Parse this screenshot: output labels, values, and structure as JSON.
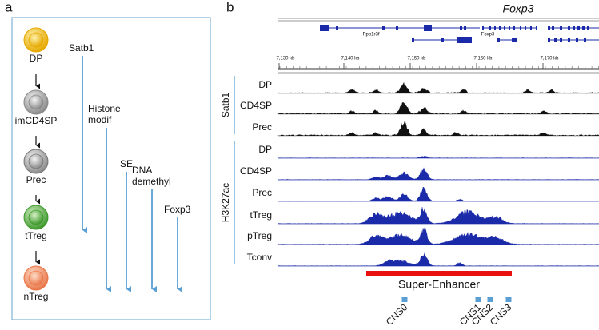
{
  "panel_a": {
    "label": "a",
    "stages": [
      "DP",
      "imCD4SP",
      "Prec",
      "tTreg",
      "nTreg"
    ],
    "events": [
      [
        "Satb1"
      ],
      [
        "Histone",
        "modif"
      ],
      [
        "SE"
      ],
      [
        "DNA",
        "demethyl"
      ],
      [
        "Foxp3"
      ]
    ]
  },
  "panel_b": {
    "label": "b",
    "gene_title": "Foxp3",
    "genes": [
      "Ppp1r3f",
      "Foxp3"
    ],
    "coordinates": [
      "7,130 kb",
      "7,140 kb",
      "7,150 kb",
      "7,160 kb",
      "7,170 kb"
    ],
    "groups": [
      {
        "name": "Satb1",
        "tracks": [
          "DP",
          "CD4SP",
          "Prec"
        ]
      },
      {
        "name": "H3K27ac",
        "tracks": [
          "DP",
          "CD4SP",
          "Prec",
          "tTreg",
          "pTreg",
          "Tconv"
        ]
      }
    ],
    "super_enhancer": "Super-Enhancer",
    "cns": [
      "CNS0",
      "CNS1",
      "CNS2",
      "CNS3"
    ]
  }
}
